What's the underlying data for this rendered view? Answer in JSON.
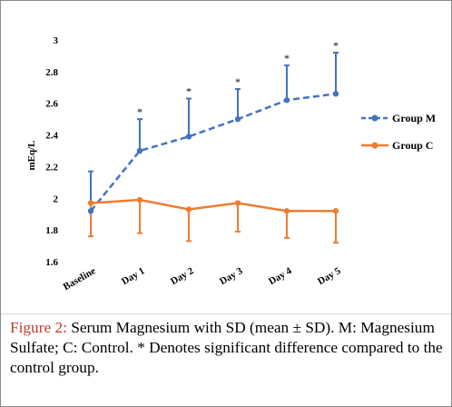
{
  "chart_data": {
    "type": "line",
    "title": "",
    "ylabel": "mEq/L",
    "xlabel": "",
    "categories": [
      "Baseline",
      "Day 1",
      "Day 2",
      "Day 3",
      "Day 4",
      "Day 5"
    ],
    "yticks": [
      "1.6",
      "1.8",
      "2",
      "2.2",
      "2.4",
      "2.6",
      "2.8",
      "3"
    ],
    "ylim": [
      1.6,
      3.0
    ],
    "grid": false,
    "legend_position": "right",
    "series": [
      {
        "name": "Group M",
        "color": "#4472c4",
        "line_style": "dashed",
        "values": [
          1.92,
          2.3,
          2.39,
          2.5,
          2.62,
          2.66
        ],
        "sd_upper": [
          2.17,
          2.5,
          2.63,
          2.69,
          2.84,
          2.92
        ],
        "significance": [
          "",
          "*",
          "*",
          "*",
          "*",
          "*"
        ]
      },
      {
        "name": "Group C",
        "color": "#ed7d31",
        "line_style": "solid",
        "values": [
          1.97,
          1.99,
          1.93,
          1.97,
          1.92,
          1.92
        ],
        "sd_lower": [
          1.76,
          1.78,
          1.73,
          1.79,
          1.75,
          1.72
        ]
      }
    ]
  },
  "caption": {
    "label": "Figure 2:",
    "text": " Serum Magnesium with SD (mean ± SD). M: Magnesium Sulfate; C: Control. * Denotes significant difference compared to the control group."
  }
}
